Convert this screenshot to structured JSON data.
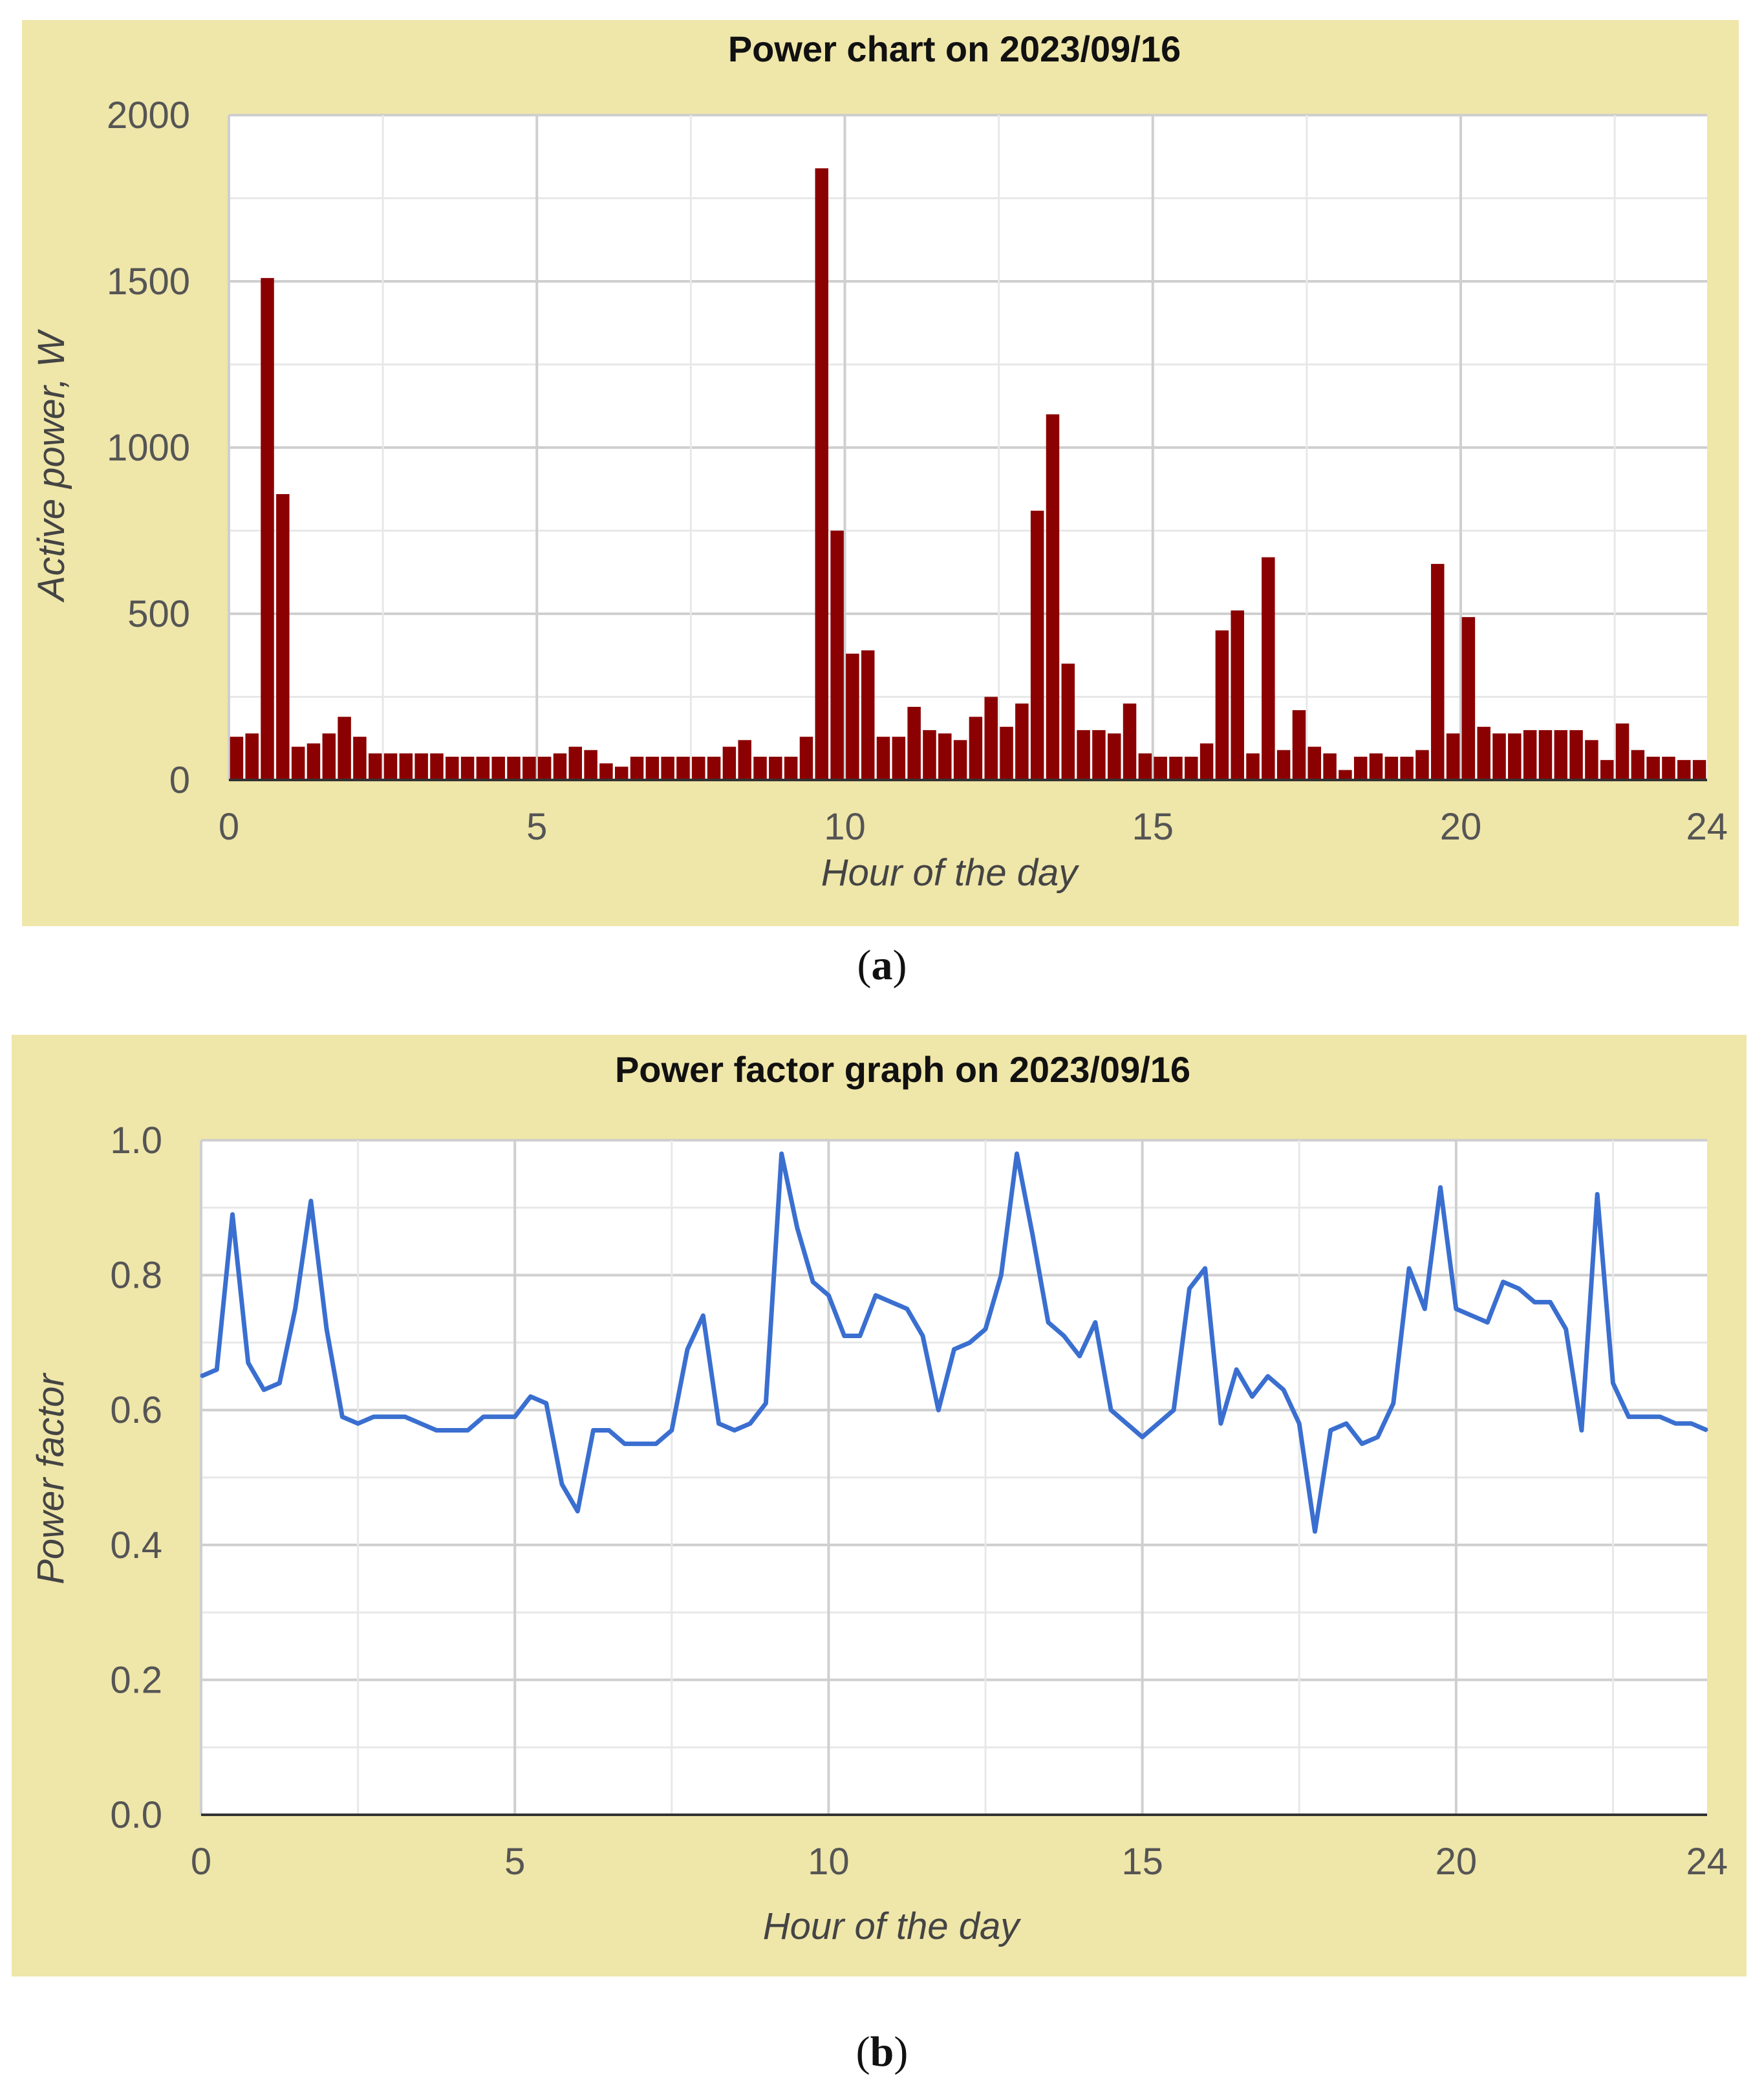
{
  "chart_data": [
    {
      "type": "bar",
      "title": "Power chart on 2023/09/16",
      "xlabel": "Hour of the day",
      "ylabel": "Active power, W",
      "xlim": [
        0,
        24
      ],
      "ylim": [
        0,
        2000
      ],
      "x_ticks": [
        "0",
        "5",
        "10",
        "15",
        "20",
        "24"
      ],
      "y_ticks": [
        "0",
        "500",
        "1000",
        "1500",
        "2000"
      ],
      "bar_color": "#8b0000",
      "bin_width_hours": 0.25,
      "x": [
        0,
        0.25,
        0.5,
        0.75,
        1,
        1.25,
        1.5,
        1.75,
        2,
        2.25,
        2.5,
        2.75,
        3,
        3.25,
        3.5,
        3.75,
        4,
        4.25,
        4.5,
        4.75,
        5,
        5.25,
        5.5,
        5.75,
        6,
        6.25,
        6.5,
        6.75,
        7,
        7.25,
        7.5,
        7.75,
        8,
        8.25,
        8.5,
        8.75,
        9,
        9.25,
        9.5,
        9.75,
        10,
        10.25,
        10.5,
        10.75,
        11,
        11.25,
        11.5,
        11.75,
        12,
        12.25,
        12.5,
        12.75,
        13,
        13.25,
        13.5,
        13.75,
        14,
        14.25,
        14.5,
        14.75,
        15,
        15.25,
        15.5,
        15.75,
        16,
        16.25,
        16.5,
        16.75,
        17,
        17.25,
        17.5,
        17.75,
        18,
        18.25,
        18.5,
        18.75,
        19,
        19.25,
        19.5,
        19.75,
        20,
        20.25,
        20.5,
        20.75,
        21,
        21.25,
        21.5,
        21.75,
        22,
        22.25,
        22.5,
        22.75,
        23,
        23.25,
        23.5,
        23.75
      ],
      "values": [
        130,
        140,
        1510,
        860,
        100,
        110,
        140,
        190,
        130,
        80,
        80,
        80,
        80,
        80,
        70,
        70,
        70,
        70,
        70,
        70,
        70,
        80,
        100,
        90,
        50,
        40,
        70,
        70,
        70,
        70,
        70,
        70,
        100,
        120,
        70,
        70,
        70,
        130,
        1840,
        750,
        380,
        390,
        130,
        130,
        220,
        150,
        140,
        120,
        190,
        250,
        160,
        230,
        810,
        1100,
        350,
        150,
        150,
        140,
        230,
        80,
        70,
        70,
        70,
        110,
        450,
        510,
        80,
        670,
        90,
        210,
        100,
        80,
        30,
        70,
        80,
        70,
        70,
        90,
        650,
        140,
        490,
        160,
        140,
        140,
        150,
        150,
        150,
        150,
        120,
        60,
        170,
        90,
        70,
        70,
        60,
        60
      ]
    },
    {
      "type": "line",
      "title": "Power factor graph on 2023/09/16",
      "xlabel": "Hour of the day",
      "ylabel": "Power factor",
      "xlim": [
        0,
        24
      ],
      "ylim": [
        0.0,
        1.0
      ],
      "x_ticks": [
        "0",
        "5",
        "10",
        "15",
        "20",
        "24"
      ],
      "y_ticks": [
        "0.0",
        "0.2",
        "0.4",
        "0.6",
        "0.8",
        "1.0"
      ],
      "line_color": "#3a6fd0",
      "x": [
        0,
        0.25,
        0.5,
        0.75,
        1,
        1.25,
        1.5,
        1.75,
        2,
        2.25,
        2.5,
        2.75,
        3,
        3.25,
        3.5,
        3.75,
        4,
        4.25,
        4.5,
        4.75,
        5,
        5.25,
        5.5,
        5.75,
        6,
        6.25,
        6.5,
        6.75,
        7,
        7.25,
        7.5,
        7.75,
        8,
        8.25,
        8.5,
        8.75,
        9,
        9.25,
        9.5,
        9.75,
        10,
        10.25,
        10.5,
        10.75,
        11,
        11.25,
        11.5,
        11.75,
        12,
        12.25,
        12.5,
        12.75,
        13,
        13.25,
        13.5,
        13.75,
        14,
        14.25,
        14.5,
        14.75,
        15,
        15.25,
        15.5,
        15.75,
        16,
        16.25,
        16.5,
        16.75,
        17,
        17.25,
        17.5,
        17.75,
        18,
        18.25,
        18.5,
        18.75,
        19,
        19.25,
        19.5,
        19.75,
        20,
        20.25,
        20.5,
        20.75,
        21,
        21.25,
        21.5,
        21.75,
        22,
        22.25,
        22.5,
        22.75,
        23,
        23.25,
        23.5,
        23.75,
        24
      ],
      "values": [
        0.65,
        0.66,
        0.89,
        0.67,
        0.63,
        0.64,
        0.75,
        0.91,
        0.72,
        0.59,
        0.58,
        0.59,
        0.59,
        0.59,
        0.58,
        0.57,
        0.57,
        0.57,
        0.59,
        0.59,
        0.59,
        0.62,
        0.61,
        0.49,
        0.45,
        0.57,
        0.57,
        0.55,
        0.55,
        0.55,
        0.57,
        0.69,
        0.74,
        0.58,
        0.57,
        0.58,
        0.61,
        0.98,
        0.87,
        0.79,
        0.77,
        0.71,
        0.71,
        0.77,
        0.76,
        0.75,
        0.71,
        0.6,
        0.69,
        0.7,
        0.72,
        0.8,
        0.98,
        0.86,
        0.73,
        0.71,
        0.68,
        0.73,
        0.6,
        0.58,
        0.56,
        0.58,
        0.6,
        0.78,
        0.81,
        0.58,
        0.66,
        0.62,
        0.65,
        0.63,
        0.58,
        0.42,
        0.57,
        0.58,
        0.55,
        0.56,
        0.61,
        0.81,
        0.75,
        0.93,
        0.75,
        0.74,
        0.73,
        0.79,
        0.78,
        0.76,
        0.76,
        0.72,
        0.57,
        0.92,
        0.64,
        0.59,
        0.59,
        0.59,
        0.58,
        0.58,
        0.57
      ]
    }
  ],
  "captions": {
    "a": {
      "open": "(",
      "letter": "a",
      "close": ")"
    },
    "b": {
      "open": "(",
      "letter": "b",
      "close": ")"
    }
  }
}
